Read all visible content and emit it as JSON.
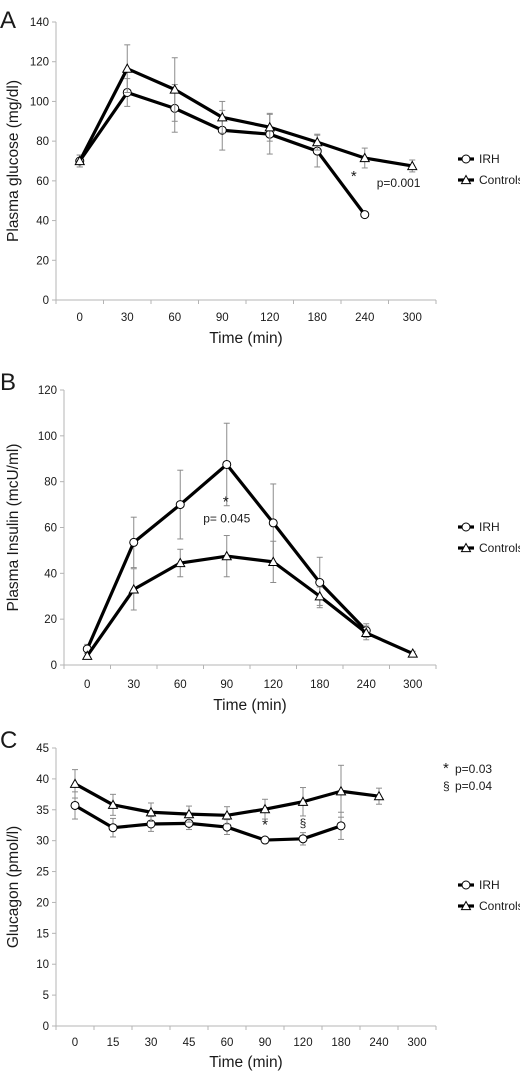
{
  "chart_data": [
    {
      "panel": "A",
      "type": "line",
      "ylabel": "Plasma glucose (mg/dl)",
      "xlabel": "Time (min)",
      "ylim": [
        0,
        140
      ],
      "yticks": [
        0,
        20,
        40,
        60,
        80,
        100,
        120,
        140
      ],
      "categories": [
        "0",
        "30",
        "60",
        "90",
        "120",
        "180",
        "240",
        "300"
      ],
      "series": [
        {
          "name": "IRH",
          "marker": "circle",
          "values": [
            70,
            104.5,
            96.5,
            85.5,
            83.5,
            75,
            43,
            null
          ],
          "err": [
            3,
            7,
            12,
            10,
            10,
            8,
            0,
            null
          ]
        },
        {
          "name": "Controls",
          "marker": "triangle",
          "values": [
            70,
            116.5,
            106,
            92,
            87,
            79.5,
            71.5,
            67.5
          ],
          "err": [
            3,
            12,
            16,
            8,
            7,
            4,
            5,
            3
          ]
        }
      ],
      "annotations": [
        {
          "text": "p=0.001",
          "symbol": "*",
          "category": "240",
          "y": 58
        }
      ],
      "legend": "right"
    },
    {
      "panel": "B",
      "type": "line",
      "ylabel": "Plasma Insulin (mcU/ml)",
      "xlabel": "Time (min)",
      "ylim": [
        0,
        120
      ],
      "yticks": [
        0,
        20,
        40,
        60,
        80,
        100,
        120
      ],
      "categories": [
        "0",
        "30",
        "60",
        "90",
        "120",
        "180",
        "240",
        "300"
      ],
      "series": [
        {
          "name": "IRH",
          "marker": "circle",
          "values": [
            7,
            53.5,
            70,
            87.5,
            62,
            36,
            15,
            null
          ],
          "err": [
            2,
            11,
            15,
            18,
            17,
            11,
            3,
            null
          ]
        },
        {
          "name": "Controls",
          "marker": "triangle",
          "values": [
            4,
            33,
            44.5,
            47.5,
            45,
            30,
            14,
            5
          ],
          "err": [
            1,
            9,
            6,
            9,
            9,
            4,
            3,
            1
          ]
        }
      ],
      "annotations": [
        {
          "text": "p= 0.045",
          "symbol": "*",
          "category": "90",
          "y": 63
        }
      ],
      "legend": "right"
    },
    {
      "panel": "C",
      "type": "line",
      "ylabel": "Glucagon (pmol/l)",
      "xlabel": "Time (min)",
      "ylim": [
        0,
        45
      ],
      "yticks": [
        0,
        5,
        10,
        15,
        20,
        25,
        30,
        35,
        40,
        45
      ],
      "categories": [
        "0",
        "15",
        "30",
        "45",
        "60",
        "90",
        "120",
        "180",
        "240",
        "300"
      ],
      "series": [
        {
          "name": "IRH",
          "marker": "circle",
          "values": [
            35.7,
            32.1,
            32.7,
            32.8,
            32.2,
            30.1,
            30.3,
            32.4,
            null,
            null
          ],
          "err": [
            2.2,
            1.5,
            1.2,
            1.0,
            1.2,
            0.4,
            1.0,
            2.2,
            null,
            null
          ]
        },
        {
          "name": "Controls",
          "marker": "triangle",
          "values": [
            39.2,
            35.8,
            34.6,
            34.3,
            34.1,
            35.1,
            36.3,
            38,
            37.2,
            null
          ],
          "err": [
            2.3,
            1.7,
            1.5,
            1.3,
            1.4,
            1.6,
            2.3,
            4.2,
            1.3,
            null
          ]
        }
      ],
      "annotations": [
        {
          "text": "",
          "symbol": "*",
          "category": "90",
          "y": 31.8
        },
        {
          "text": "",
          "symbol": "§",
          "category": "120",
          "y": 32.2
        }
      ],
      "side_notes": [
        "p=0.03",
        "p=0.04"
      ],
      "side_symbols": [
        "*",
        "§"
      ],
      "legend": "right"
    }
  ],
  "colors": {
    "line": "#000000",
    "error_bar": "#8c8c8c",
    "axis": "#b4b4b4",
    "marker_fill": "#ffffff"
  }
}
